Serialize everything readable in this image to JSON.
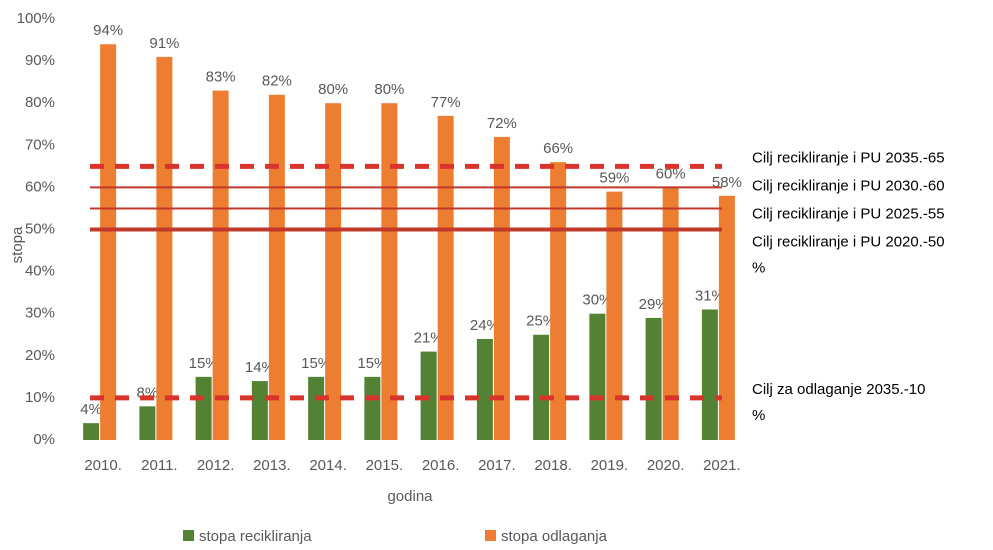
{
  "chart_data": {
    "type": "bar",
    "xlabel": "godina",
    "ylabel": "stopa",
    "categories": [
      "2010.",
      "2011.",
      "2012.",
      "2013.",
      "2014.",
      "2015.",
      "2016.",
      "2017.",
      "2018.",
      "2019.",
      "2020.",
      "2021."
    ],
    "series": [
      {
        "name": "stopa recikliranja",
        "color": "#548235",
        "values": [
          4,
          8,
          15,
          14,
          15,
          15,
          21,
          24,
          25,
          30,
          29,
          31
        ],
        "value_labels": [
          "4%",
          "8%",
          "15%",
          "14%",
          "15%",
          "15%",
          "21%",
          "24%",
          "25%",
          "30%",
          "29%",
          "31%"
        ]
      },
      {
        "name": "stopa odlaganja",
        "color": "#ed7d31",
        "values": [
          94,
          91,
          83,
          82,
          80,
          80,
          77,
          72,
          66,
          59,
          60,
          58
        ],
        "value_labels": [
          "94%",
          "91%",
          "83%",
          "82%",
          "80%",
          "80%",
          "77%",
          "72%",
          "66%",
          "59%",
          "60%",
          "58%"
        ]
      }
    ],
    "ylim": [
      0,
      100
    ],
    "yticks": [
      {
        "value": 0,
        "label": "0%"
      },
      {
        "value": 10,
        "label": "10%"
      },
      {
        "value": 20,
        "label": "20%"
      },
      {
        "value": 30,
        "label": "30%"
      },
      {
        "value": 40,
        "label": "40%"
      },
      {
        "value": 50,
        "label": "50%"
      },
      {
        "value": 60,
        "label": "60%"
      },
      {
        "value": 70,
        "label": "70%"
      },
      {
        "value": 80,
        "label": "80%"
      },
      {
        "value": 90,
        "label": "90%"
      },
      {
        "value": 100,
        "label": "100%"
      }
    ],
    "grid": false,
    "reference_lines": [
      {
        "value": 65,
        "label": [
          "Cilj recikliranje i PU 2035.-65"
        ],
        "style": "dashed",
        "color": "#d9342b"
      },
      {
        "value": 60,
        "label": [
          "Cilj recikliranje i PU 2030.-60"
        ],
        "style": "solid",
        "color": "#c0392b"
      },
      {
        "value": 55,
        "label": [
          "Cilj recikliranje i PU 2025.-55"
        ],
        "style": "solid",
        "color": "#c0392b"
      },
      {
        "value": 50,
        "label": [
          "Cilj recikliranje i PU 2020.-50",
          "%"
        ],
        "style": "bold",
        "color": "#c0392b"
      },
      {
        "value": 10,
        "label": [
          "Cilj za odlaganje 2035.-10",
          "%"
        ],
        "style": "dashed",
        "color": "#d9342b"
      }
    ]
  }
}
